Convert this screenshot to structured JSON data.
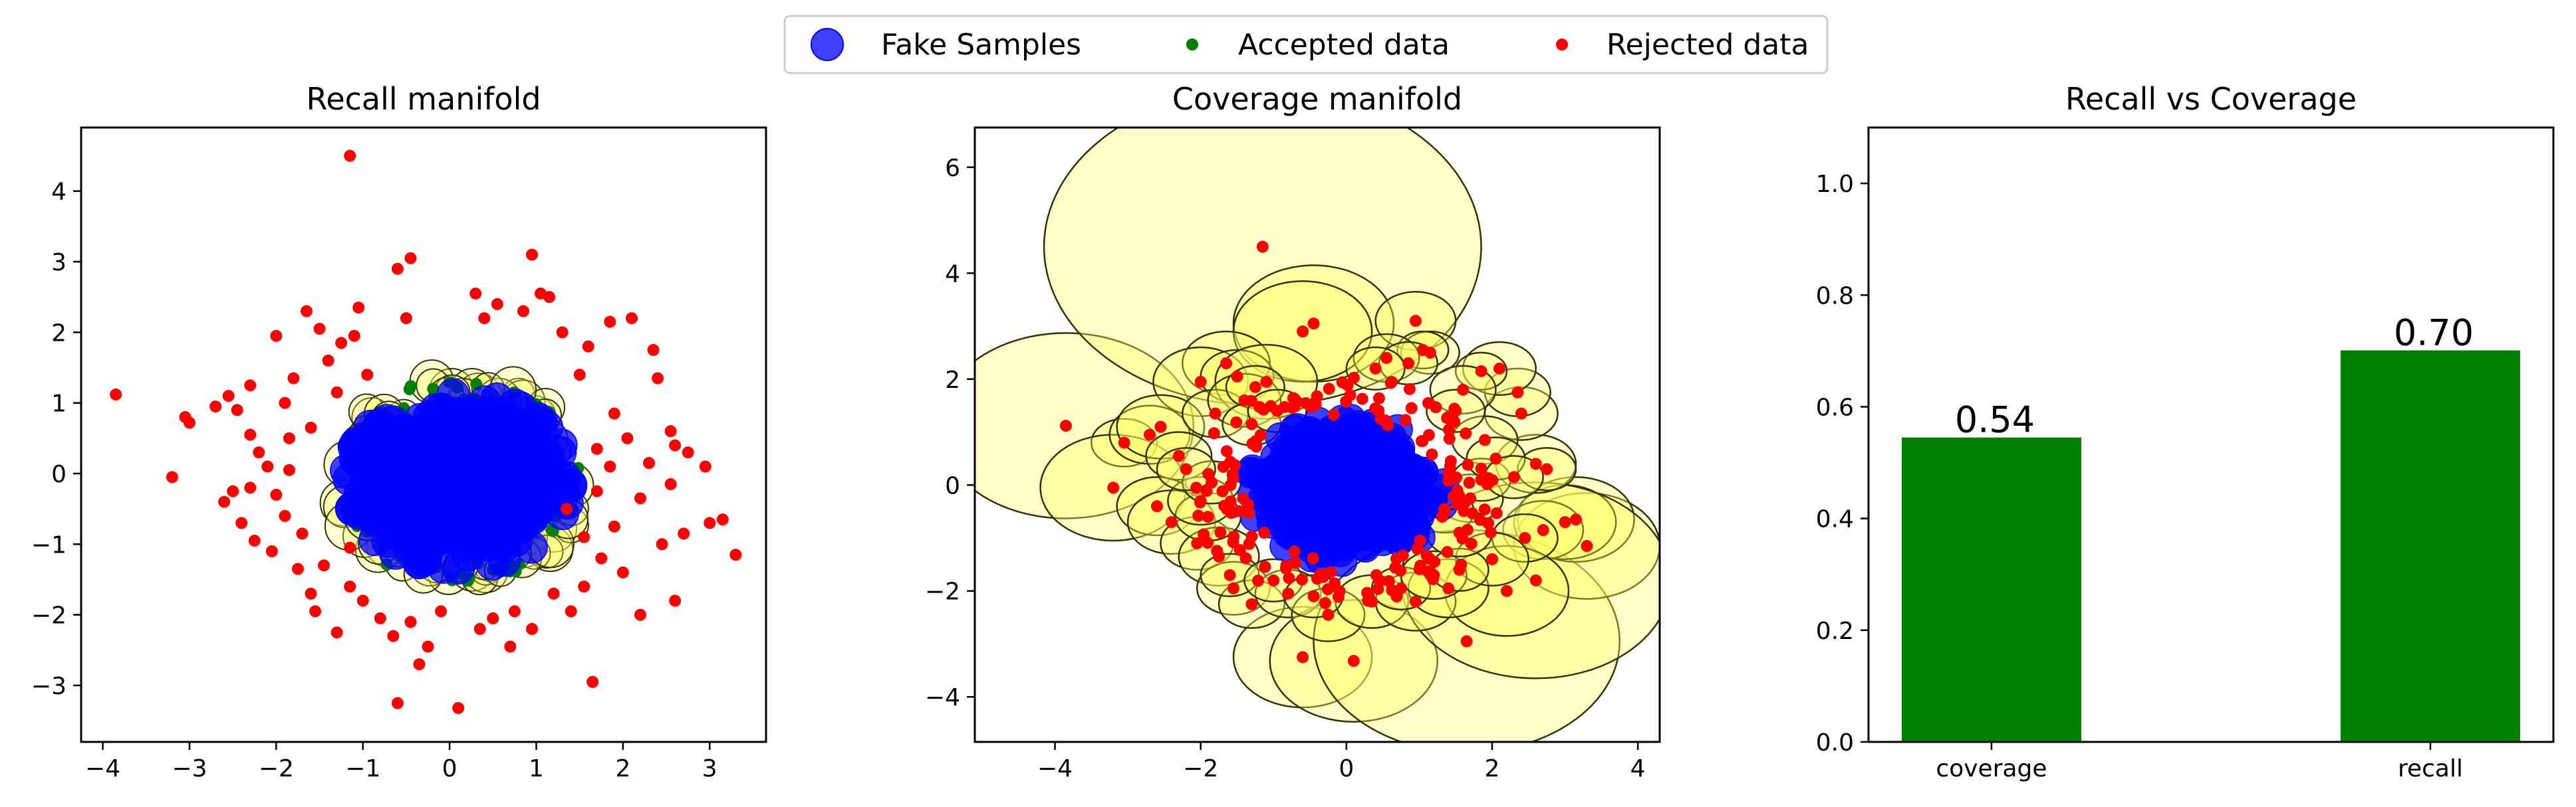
{
  "legend": {
    "items": [
      {
        "label": "Fake Samples",
        "color": "#0000ff",
        "marker": "large-circle"
      },
      {
        "label": "Accepted data",
        "color": "#008000",
        "marker": "dot"
      },
      {
        "label": "Rejected data",
        "color": "#ff0000",
        "marker": "dot"
      }
    ]
  },
  "chart_data": [
    {
      "type": "scatter",
      "title": "Recall manifold",
      "xlabel": "",
      "ylabel": "",
      "xlim": [
        -4.25,
        3.65
      ],
      "ylim": [
        -3.8,
        4.9
      ],
      "xticks": [
        -4,
        -3,
        -2,
        -1,
        0,
        1,
        2,
        3
      ],
      "yticks": [
        -3,
        -2,
        -1,
        0,
        1,
        2,
        3,
        4
      ],
      "xtick_labels": [
        "−4",
        "−3",
        "−2",
        "−1",
        "0",
        "1",
        "2",
        "3"
      ],
      "ytick_labels": [
        "−3",
        "−2",
        "−1",
        "0",
        "1",
        "2",
        "3",
        "4"
      ],
      "grid": false,
      "series": [
        {
          "name": "Fake Samples",
          "color": "#0000ff",
          "description": "dense cluster of large blue circles centered near (0.1, -0.1)"
        },
        {
          "name": "Accepted data",
          "color": "#008000",
          "description": "green dots around the cluster edge"
        },
        {
          "name": "Rejected data",
          "color": "#ff0000",
          "points": [
            [
              -3.85,
              1.12
            ],
            [
              -3.05,
              0.8
            ],
            [
              -3.0,
              0.72
            ],
            [
              -3.2,
              -0.05
            ],
            [
              -2.7,
              0.95
            ],
            [
              -2.55,
              1.1
            ],
            [
              -2.45,
              0.9
            ],
            [
              -2.3,
              0.55
            ],
            [
              -2.2,
              0.3
            ],
            [
              -2.6,
              -0.4
            ],
            [
              -2.4,
              -0.7
            ],
            [
              -2.3,
              -0.2
            ],
            [
              -2.1,
              0.1
            ],
            [
              -2.0,
              1.95
            ],
            [
              -1.9,
              1.0
            ],
            [
              -1.8,
              1.35
            ],
            [
              -1.65,
              2.3
            ],
            [
              -1.6,
              0.65
            ],
            [
              -1.5,
              2.05
            ],
            [
              -1.4,
              1.6
            ],
            [
              -1.25,
              1.85
            ],
            [
              -1.1,
              1.95
            ],
            [
              -0.6,
              2.9
            ],
            [
              -0.45,
              3.05
            ],
            [
              -1.15,
              4.5
            ],
            [
              -2.05,
              -1.1
            ],
            [
              -1.9,
              -0.6
            ],
            [
              -1.75,
              -1.35
            ],
            [
              -1.6,
              -1.7
            ],
            [
              -1.55,
              -1.95
            ],
            [
              -1.3,
              -2.25
            ],
            [
              -1.15,
              -1.6
            ],
            [
              -1.0,
              -1.8
            ],
            [
              -0.8,
              -2.05
            ],
            [
              -0.65,
              -2.3
            ],
            [
              -0.45,
              -2.1
            ],
            [
              -0.25,
              -2.45
            ],
            [
              -0.1,
              -1.95
            ],
            [
              -0.6,
              -3.25
            ],
            [
              0.1,
              -3.32
            ],
            [
              0.35,
              -2.2
            ],
            [
              0.5,
              -2.05
            ],
            [
              0.75,
              -1.95
            ],
            [
              0.95,
              -2.2
            ],
            [
              1.2,
              -1.7
            ],
            [
              1.4,
              -1.95
            ],
            [
              1.55,
              -1.6
            ],
            [
              1.65,
              -2.95
            ],
            [
              2.0,
              -1.4
            ],
            [
              2.2,
              -2.0
            ],
            [
              2.45,
              -1.0
            ],
            [
              2.7,
              -0.85
            ],
            [
              2.6,
              -1.8
            ],
            [
              3.0,
              -0.7
            ],
            [
              3.15,
              -0.65
            ],
            [
              3.3,
              -1.15
            ],
            [
              2.6,
              0.4
            ],
            [
              2.75,
              0.3
            ],
            [
              2.55,
              0.6
            ],
            [
              2.3,
              0.15
            ],
            [
              2.05,
              0.5
            ],
            [
              1.85,
              0.1
            ],
            [
              1.7,
              0.35
            ],
            [
              1.9,
              0.85
            ],
            [
              2.4,
              1.35
            ],
            [
              2.35,
              1.75
            ],
            [
              2.1,
              2.2
            ],
            [
              1.85,
              2.15
            ],
            [
              1.6,
              1.8
            ],
            [
              1.5,
              1.4
            ],
            [
              1.15,
              2.5
            ],
            [
              1.05,
              2.55
            ],
            [
              0.95,
              3.1
            ],
            [
              0.85,
              2.3
            ],
            [
              0.55,
              2.4
            ],
            [
              0.4,
              2.2
            ],
            [
              1.35,
              -0.5
            ],
            [
              1.55,
              -0.9
            ],
            [
              1.7,
              -0.25
            ],
            [
              -1.85,
              0.05
            ],
            [
              -2.0,
              -0.3
            ],
            [
              -1.7,
              -0.85
            ],
            [
              -1.3,
              1.15
            ],
            [
              -0.95,
              1.4
            ],
            [
              -1.15,
              -1.05
            ],
            [
              -2.25,
              -0.95
            ],
            [
              -2.5,
              -0.25
            ],
            [
              -1.85,
              0.5
            ],
            [
              2.2,
              -0.35
            ],
            [
              1.9,
              -0.75
            ],
            [
              2.55,
              -0.15
            ],
            [
              1.3,
              2.0
            ],
            [
              0.3,
              2.55
            ],
            [
              -0.5,
              2.2
            ],
            [
              1.75,
              -1.2
            ],
            [
              -1.45,
              -1.3
            ],
            [
              -2.3,
              1.25
            ],
            [
              -1.05,
              2.35
            ],
            [
              0.7,
              -2.45
            ],
            [
              -0.35,
              -2.7
            ],
            [
              2.95,
              0.1
            ]
          ]
        }
      ]
    },
    {
      "type": "scatter",
      "title": "Coverage manifold",
      "xlabel": "",
      "ylabel": "",
      "xlim": [
        -5.1,
        4.3
      ],
      "ylim": [
        -4.85,
        6.75
      ],
      "xticks": [
        -4,
        -2,
        0,
        2,
        4
      ],
      "yticks": [
        -4,
        -2,
        0,
        2,
        4,
        6
      ],
      "xtick_labels": [
        "−4",
        "−2",
        "0",
        "2",
        "4"
      ],
      "ytick_labels": [
        "−4",
        "−2",
        "0",
        "2",
        "4",
        "6"
      ],
      "grid": false,
      "series": [
        {
          "name": "Fake Samples",
          "color": "#0000ff",
          "description": "dense cluster of blue circles centered near (0, -0.1)"
        },
        {
          "name": "Rejected data",
          "color": "#ff0000",
          "points": [
            [
              -3.85,
              1.12
            ],
            [
              -3.05,
              0.8
            ],
            [
              -3.2,
              -0.05
            ],
            [
              -1.15,
              4.5
            ],
            [
              -0.45,
              3.05
            ],
            [
              -0.6,
              2.9
            ],
            [
              0.95,
              3.1
            ],
            [
              -1.65,
              2.3
            ],
            [
              -2.0,
              1.95
            ],
            [
              -1.5,
              2.05
            ],
            [
              -1.1,
              1.95
            ],
            [
              -0.6,
              -3.25
            ],
            [
              0.1,
              -3.32
            ],
            [
              1.65,
              -2.95
            ],
            [
              3.3,
              -1.15
            ],
            [
              3.15,
              -0.65
            ],
            [
              3.0,
              -0.7
            ],
            [
              2.7,
              -0.85
            ],
            [
              2.6,
              -1.8
            ],
            [
              2.2,
              -2.0
            ],
            [
              2.45,
              -1.0
            ],
            [
              2.6,
              0.4
            ],
            [
              2.75,
              0.3
            ],
            [
              2.4,
              1.35
            ],
            [
              2.35,
              1.75
            ],
            [
              2.1,
              2.2
            ],
            [
              1.85,
              2.15
            ],
            [
              1.15,
              2.5
            ],
            [
              1.05,
              2.55
            ],
            [
              0.55,
              2.4
            ],
            [
              -2.7,
              0.95
            ],
            [
              -2.55,
              1.1
            ],
            [
              -2.6,
              -0.4
            ],
            [
              -2.4,
              -0.7
            ],
            [
              -2.3,
              0.55
            ],
            [
              -2.05,
              -1.1
            ],
            [
              -1.75,
              -1.35
            ],
            [
              -1.55,
              -1.95
            ],
            [
              -1.3,
              -2.25
            ],
            [
              -0.8,
              -2.05
            ],
            [
              -0.25,
              -2.45
            ],
            [
              0.35,
              -2.2
            ],
            [
              0.95,
              -2.2
            ],
            [
              1.4,
              -1.95
            ],
            [
              2.0,
              -1.4
            ],
            [
              1.9,
              0.85
            ],
            [
              -1.8,
              1.35
            ],
            [
              -1.4,
              1.6
            ],
            [
              -1.25,
              1.85
            ],
            [
              1.6,
              1.8
            ],
            [
              1.5,
              1.4
            ],
            [
              0.85,
              2.3
            ],
            [
              0.4,
              2.2
            ],
            [
              -1.9,
              -0.6
            ],
            [
              -1.6,
              -1.7
            ],
            [
              -1.0,
              -1.8
            ],
            [
              -0.45,
              -2.1
            ],
            [
              0.75,
              -1.95
            ],
            [
              1.2,
              -1.7
            ],
            [
              1.55,
              -1.6
            ],
            [
              1.7,
              -0.25
            ],
            [
              1.35,
              -0.5
            ],
            [
              1.55,
              -0.9
            ],
            [
              1.85,
              0.1
            ],
            [
              2.05,
              0.5
            ],
            [
              2.3,
              0.15
            ],
            [
              -2.0,
              -0.3
            ],
            [
              -1.85,
              0.05
            ],
            [
              -1.3,
              1.15
            ],
            [
              -0.95,
              1.4
            ],
            [
              -2.2,
              0.3
            ]
          ],
          "coverage_radii": [
            1.75,
            0.45,
            1.0,
            3.0,
            1.1,
            0.95,
            0.55,
            0.6,
            0.65,
            0.5,
            0.7,
            0.95,
            1.15,
            2.1,
            1.0,
            0.8,
            0.7,
            0.55,
            1.85,
            0.85,
            0.45,
            0.55,
            0.4,
            0.5,
            0.45,
            0.5,
            0.35,
            0.4,
            0.35,
            0.45,
            0.55,
            0.6,
            0.55,
            0.6,
            0.45,
            0.5,
            0.55,
            0.5,
            0.45,
            0.45,
            0.5,
            0.5,
            0.55,
            0.55,
            0.5,
            0.45,
            0.45,
            0.5,
            0.4,
            0.45,
            0.4,
            0.4,
            0.4,
            0.45,
            0.4,
            0.4,
            0.4,
            0.4,
            0.45,
            0.4,
            0.45,
            0.4,
            0.45,
            0.4,
            0.4,
            0.4,
            0.45,
            0.4,
            0.4,
            0.4,
            0.4
          ]
        }
      ]
    },
    {
      "type": "bar",
      "title": "Recall vs Coverage",
      "xlabel": "",
      "ylabel": "",
      "categories": [
        "coverage",
        "recall"
      ],
      "values": [
        0.545,
        0.701
      ],
      "value_labels": [
        "0.54",
        "0.70"
      ],
      "color": "#008000",
      "ylim": [
        0.0,
        1.1
      ],
      "yticks": [
        0.0,
        0.2,
        0.4,
        0.6,
        0.8,
        1.0
      ],
      "ytick_labels": [
        "0.0",
        "0.2",
        "0.4",
        "0.6",
        "0.8",
        "1.0"
      ],
      "grid": false
    }
  ]
}
